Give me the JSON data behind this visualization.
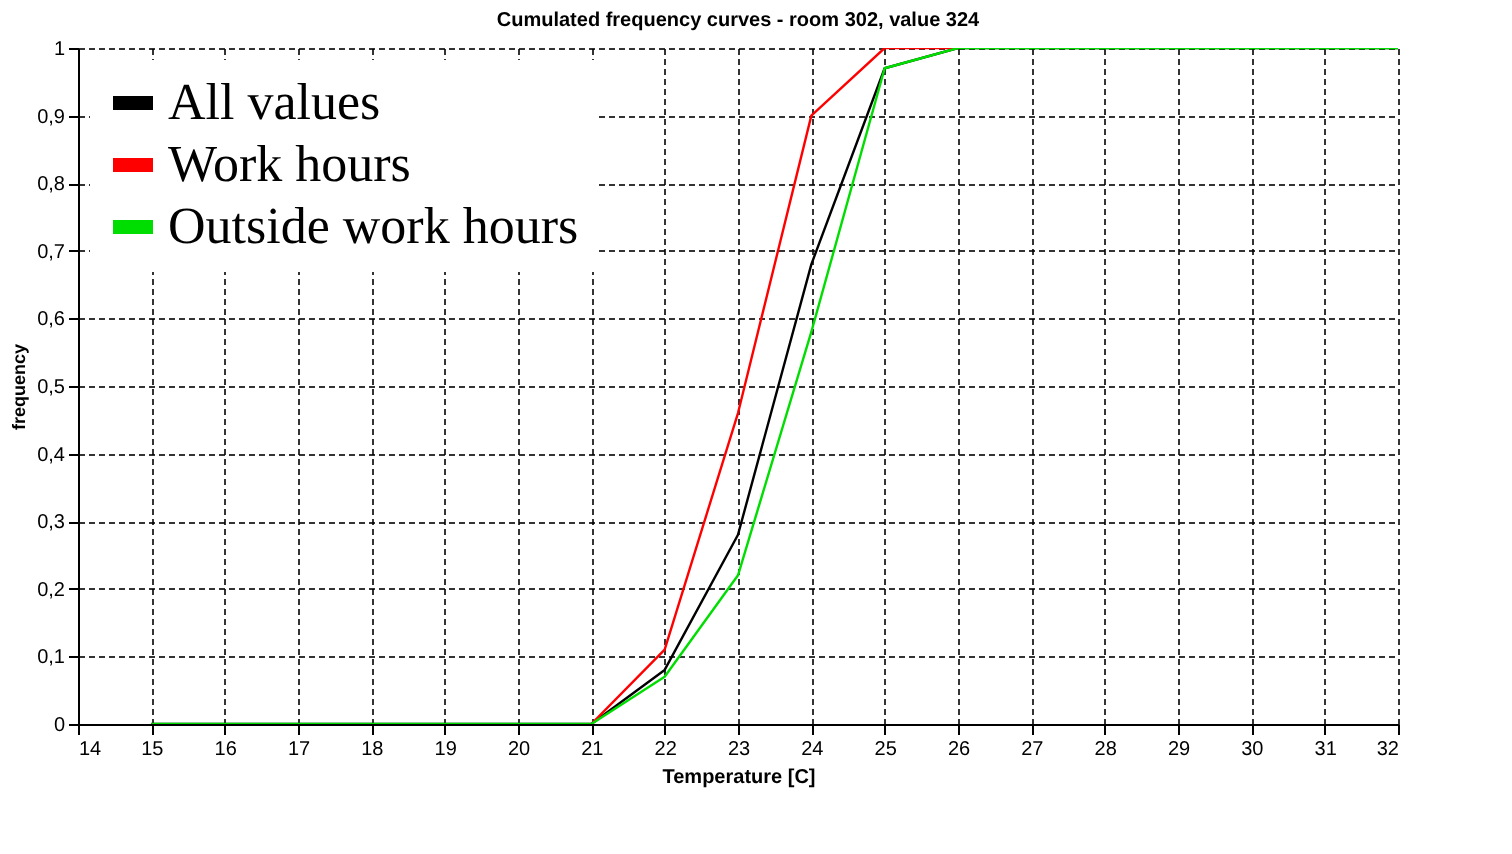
{
  "chart_data": {
    "type": "line",
    "title": "Cumulated frequency curves - room 302, value 324",
    "xlabel": "Temperature [C]",
    "ylabel": "frequency",
    "x": [
      15,
      16,
      17,
      18,
      19,
      20,
      21,
      22,
      23,
      24,
      25,
      26,
      27,
      28,
      29,
      30,
      31,
      32
    ],
    "series": [
      {
        "name": "All values",
        "color": "#000000",
        "values": [
          0,
          0,
          0,
          0,
          0,
          0,
          0,
          0.08,
          0.28,
          0.68,
          0.97,
          1,
          1,
          1,
          1,
          1,
          1,
          1
        ]
      },
      {
        "name": "Work hours",
        "color": "#ff0000",
        "values": [
          null,
          null,
          null,
          null,
          null,
          null,
          0,
          0.11,
          0.46,
          0.9,
          1,
          1,
          null,
          null,
          null,
          null,
          null,
          null
        ]
      },
      {
        "name": "Outside work hours",
        "color": "#00dd00",
        "values": [
          0,
          0,
          0,
          0,
          0,
          0,
          0,
          0.07,
          0.22,
          0.58,
          0.97,
          1,
          1,
          1,
          1,
          1,
          1,
          1
        ]
      }
    ],
    "xlim": [
      14,
      32
    ],
    "xticks": [
      14,
      15,
      16,
      17,
      18,
      19,
      20,
      21,
      22,
      23,
      24,
      25,
      26,
      27,
      28,
      29,
      30,
      31,
      32
    ],
    "ylim": [
      0,
      1
    ],
    "yticks": [
      0,
      {
        "value": 0.1,
        "label": "0,1"
      },
      {
        "value": 0.2,
        "label": "0,2"
      },
      {
        "value": 0.3,
        "label": "0,3"
      },
      {
        "value": 0.4,
        "label": "0,4"
      },
      {
        "value": 0.5,
        "label": "0,5"
      },
      {
        "value": 0.6,
        "label": "0,6"
      },
      {
        "value": 0.7,
        "label": "0,7"
      },
      {
        "value": 0.8,
        "label": "0,8"
      },
      {
        "value": 0.9,
        "label": "0,9"
      },
      1
    ],
    "grid": true,
    "legend": "top left",
    "marker": "none",
    "line_style": "solid"
  }
}
